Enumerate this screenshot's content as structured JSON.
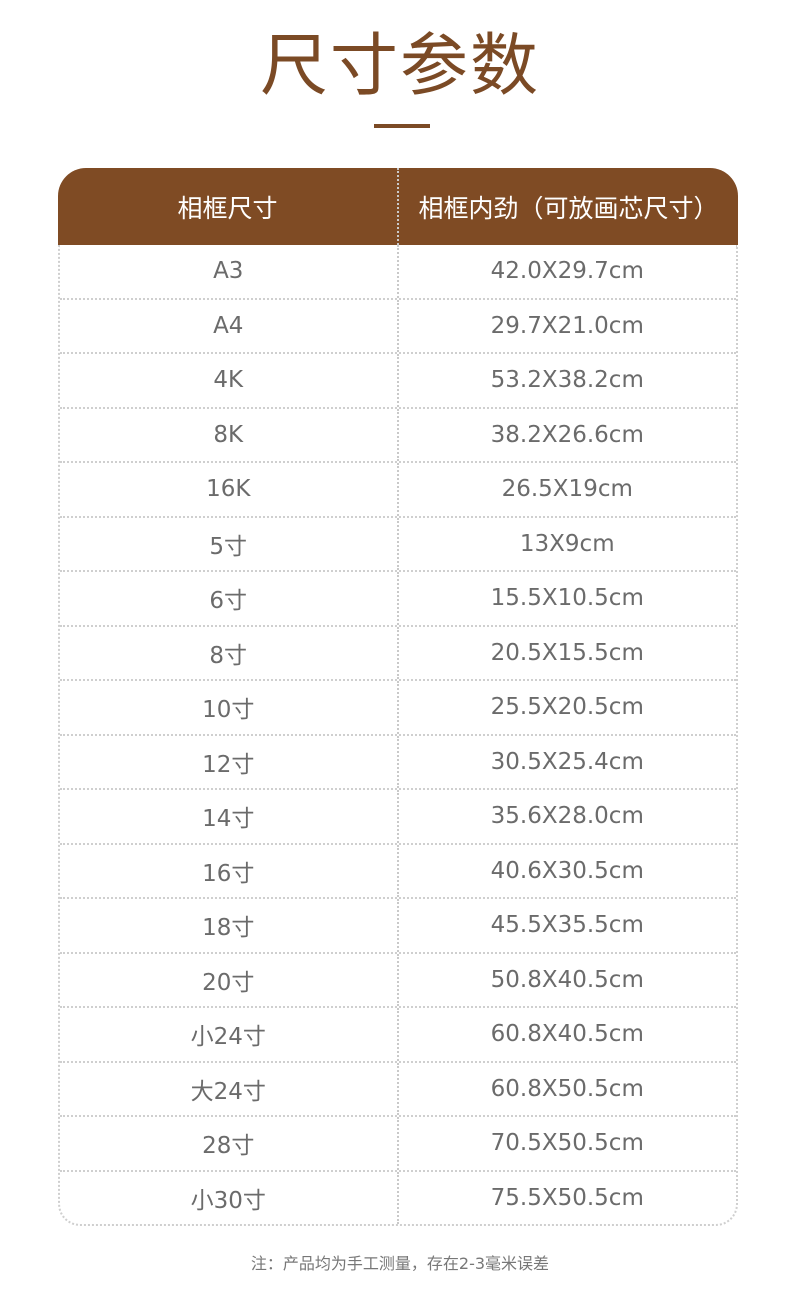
{
  "title": "尺寸参数",
  "table": {
    "headers": [
      "相框尺寸",
      "相框内劲（可放画芯尺寸）"
    ],
    "rows": [
      [
        "A3",
        "42.0X29.7cm"
      ],
      [
        "A4",
        "29.7X21.0cm"
      ],
      [
        "4K",
        "53.2X38.2cm"
      ],
      [
        "8K",
        "38.2X26.6cm"
      ],
      [
        "16K",
        "26.5X19cm"
      ],
      [
        "5寸",
        "13X9cm"
      ],
      [
        "6寸",
        "15.5X10.5cm"
      ],
      [
        "8寸",
        "20.5X15.5cm"
      ],
      [
        "10寸",
        "25.5X20.5cm"
      ],
      [
        "12寸",
        "30.5X25.4cm"
      ],
      [
        "14寸",
        "35.6X28.0cm"
      ],
      [
        "16寸",
        "40.6X30.5cm"
      ],
      [
        "18寸",
        "45.5X35.5cm"
      ],
      [
        "20寸",
        "50.8X40.5cm"
      ],
      [
        "小24寸",
        "60.8X40.5cm"
      ],
      [
        "大24寸",
        "60.8X50.5cm"
      ],
      [
        "28寸",
        "70.5X50.5cm"
      ],
      [
        "小30寸",
        "75.5X50.5cm"
      ]
    ]
  },
  "note": "注：产品均为手工测量，存在2-3毫米误差",
  "colors": {
    "brand": "#7f4b24",
    "text": "#6b6b6b"
  }
}
